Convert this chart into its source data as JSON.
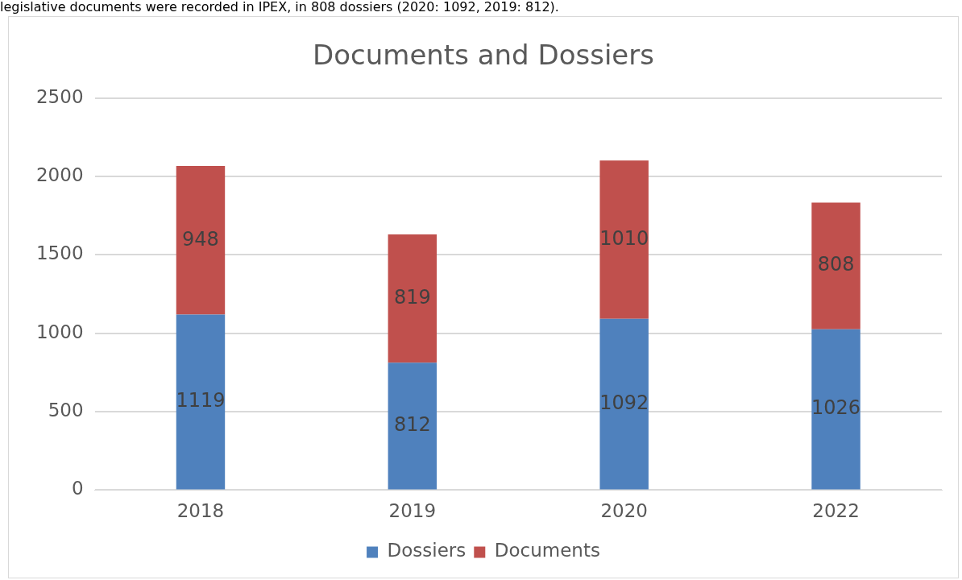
{
  "chart_data": {
    "type": "bar",
    "title": "Documents and Dossiers",
    "annotations": [
      "legislative documents were recorded in IPEX, in 808 dossiers (2020: 1092, 2019: 812)."
    ],
    "categories": [
      "2018",
      "2019",
      "2020",
      "2022"
    ],
    "series": [
      {
        "name": "Dossiers",
        "color": "#4f81bd",
        "values": [
          1119,
          812,
          1092,
          1026
        ]
      },
      {
        "name": "Documents",
        "color": "#c0504d",
        "values": [
          948,
          819,
          1010,
          808
        ]
      }
    ],
    "stacked": true,
    "ylim": [
      0,
      2500
    ],
    "yticks": [
      0,
      500,
      1000,
      1500,
      2000,
      2500
    ],
    "grid": "y",
    "legend": "bottom",
    "data_labels": true
  }
}
